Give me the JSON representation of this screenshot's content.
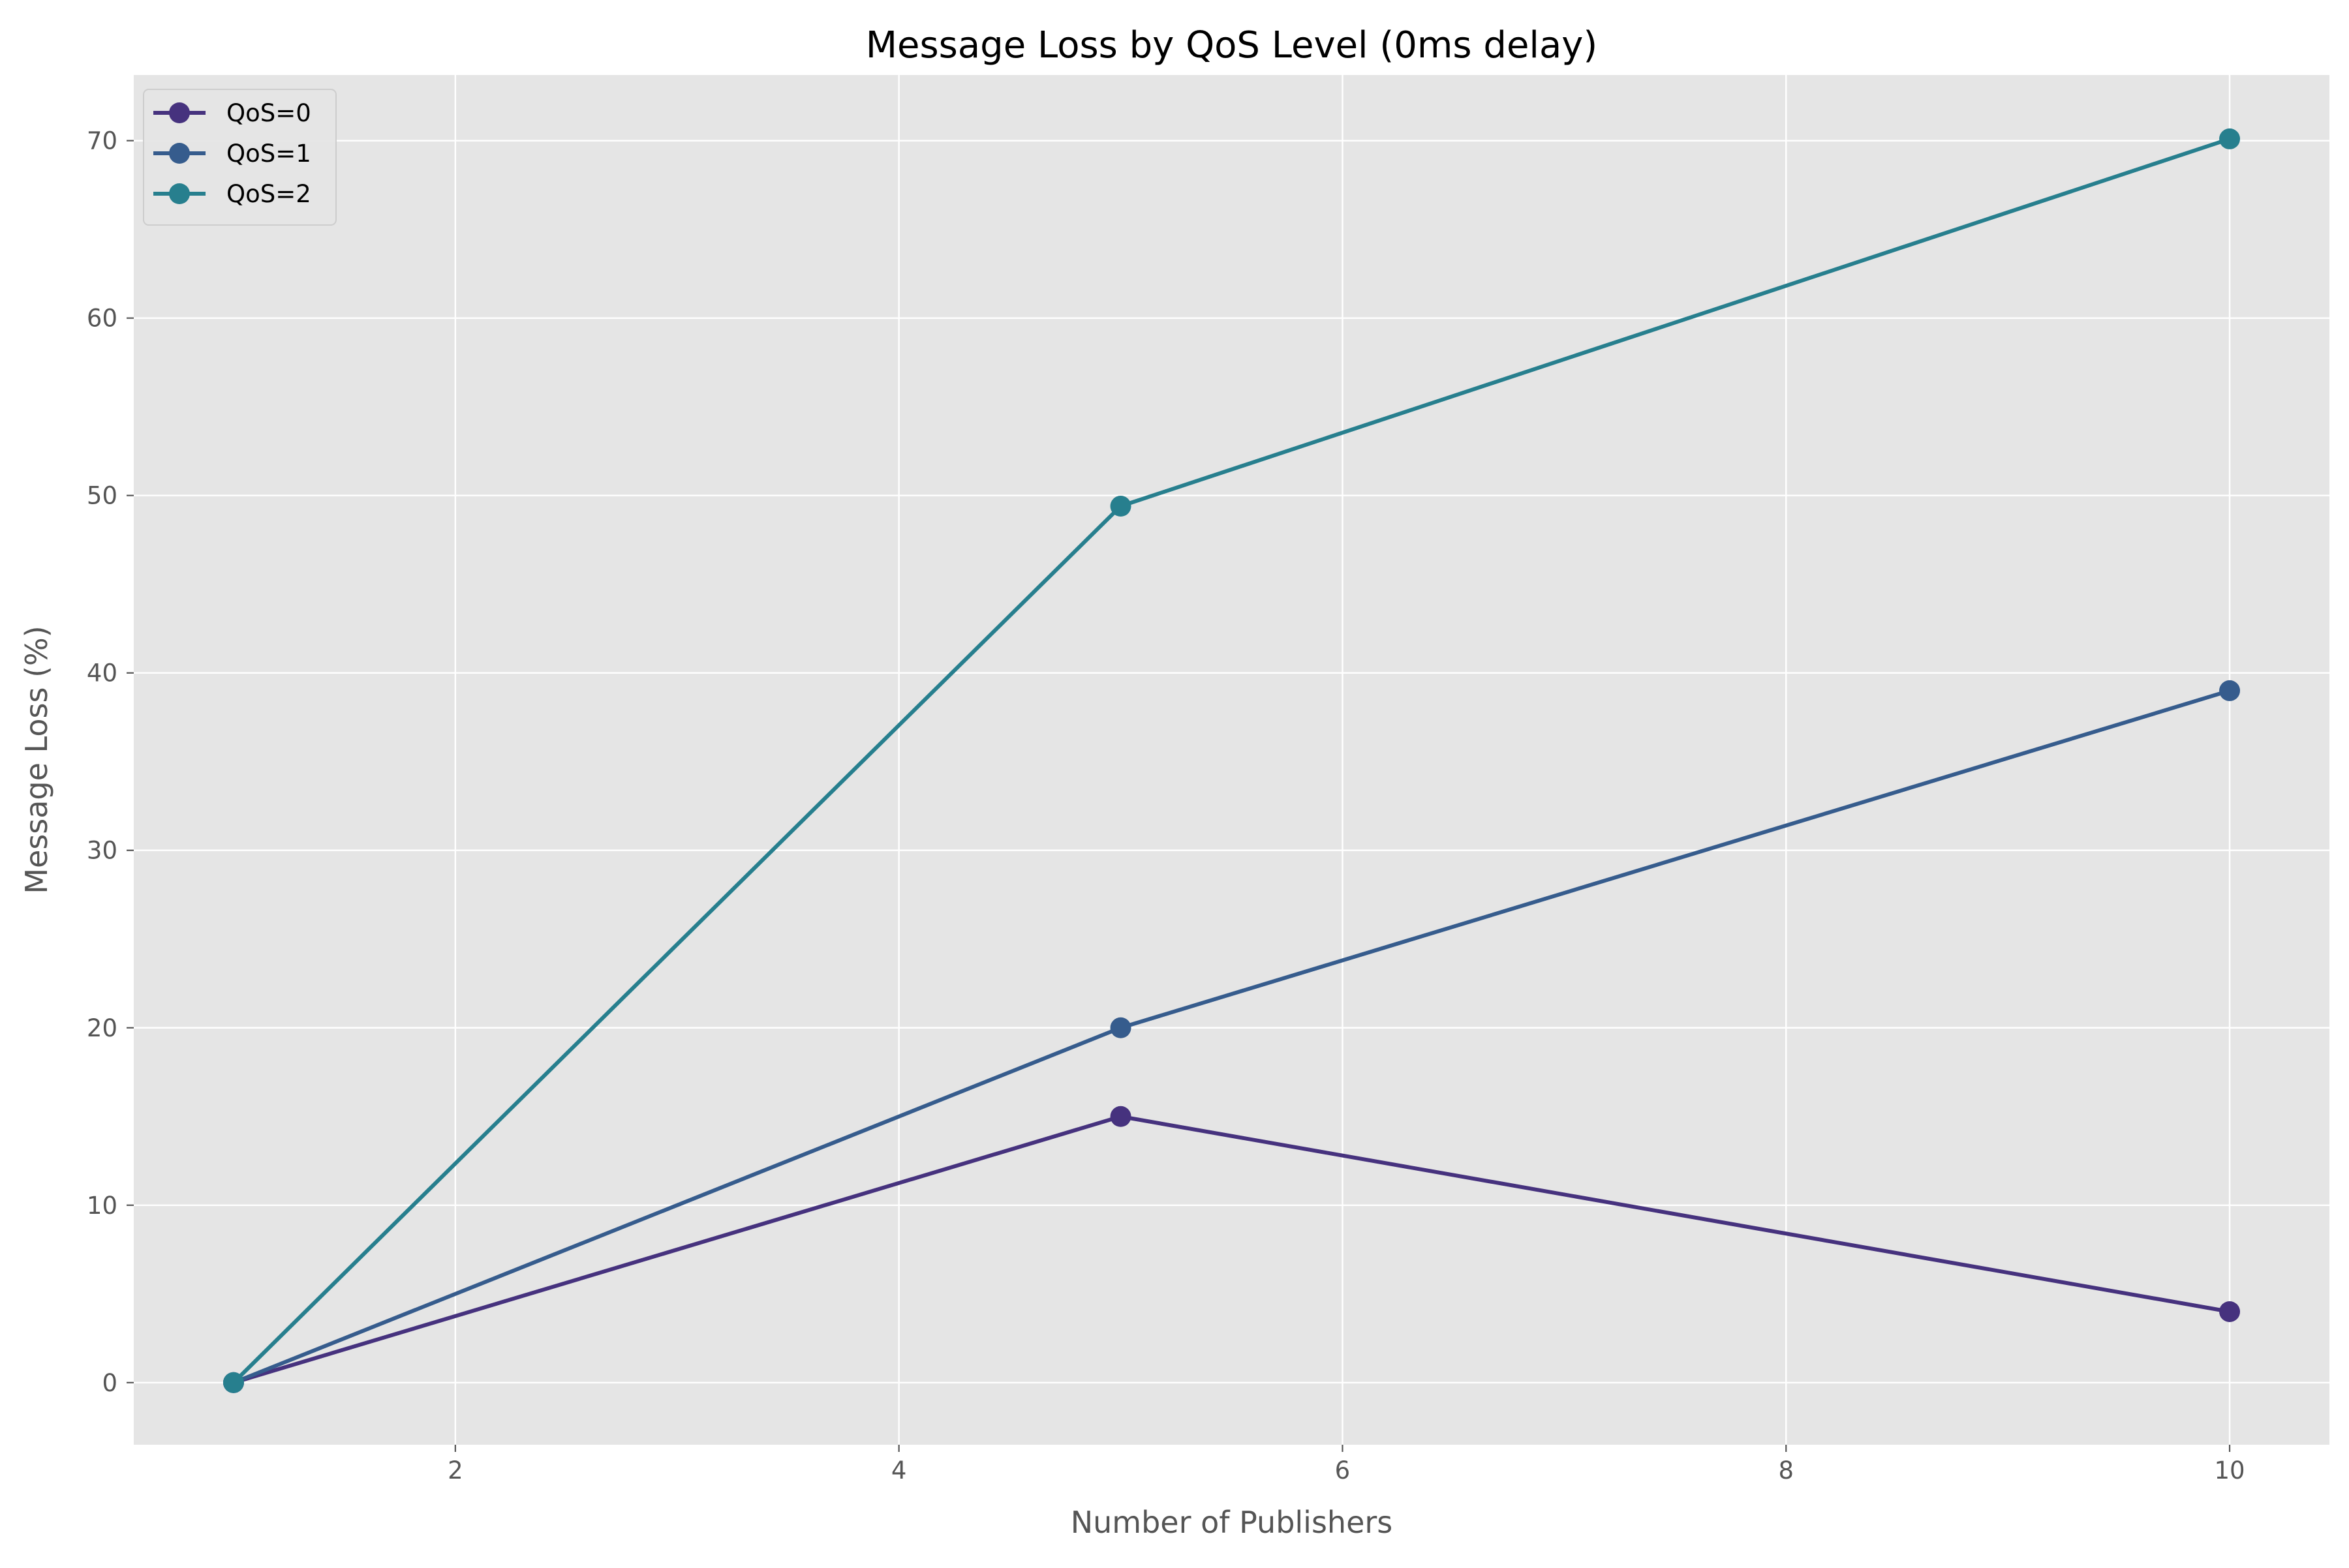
{
  "chart_data": {
    "type": "line",
    "title": "Message Loss by QoS Level (0ms delay)",
    "xlabel": "Number of Publishers",
    "ylabel": "Message Loss (%)",
    "xlim": [
      0.55,
      10.45
    ],
    "ylim": [
      -3.5,
      73.7
    ],
    "xticks": [
      2,
      4,
      6,
      8,
      10
    ],
    "xtick_labels": [
      "2",
      "4",
      "6",
      "8",
      "10"
    ],
    "yticks": [
      0,
      10,
      20,
      30,
      40,
      50,
      60,
      70
    ],
    "ytick_labels": [
      "0",
      "10",
      "20",
      "30",
      "40",
      "50",
      "60",
      "70"
    ],
    "grid": true,
    "legend_position": "top-left",
    "background": "#e5e5e5",
    "grid_color": "#ffffff",
    "x": [
      1,
      5,
      10
    ],
    "series": [
      {
        "name": "QoS=0",
        "values": [
          0,
          15.0,
          4.0
        ],
        "color": "#46327e"
      },
      {
        "name": "QoS=1",
        "values": [
          0,
          20.0,
          39.0
        ],
        "color": "#365c8d"
      },
      {
        "name": "QoS=2",
        "values": [
          0,
          49.4,
          70.1
        ],
        "color": "#277f8e"
      }
    ]
  }
}
